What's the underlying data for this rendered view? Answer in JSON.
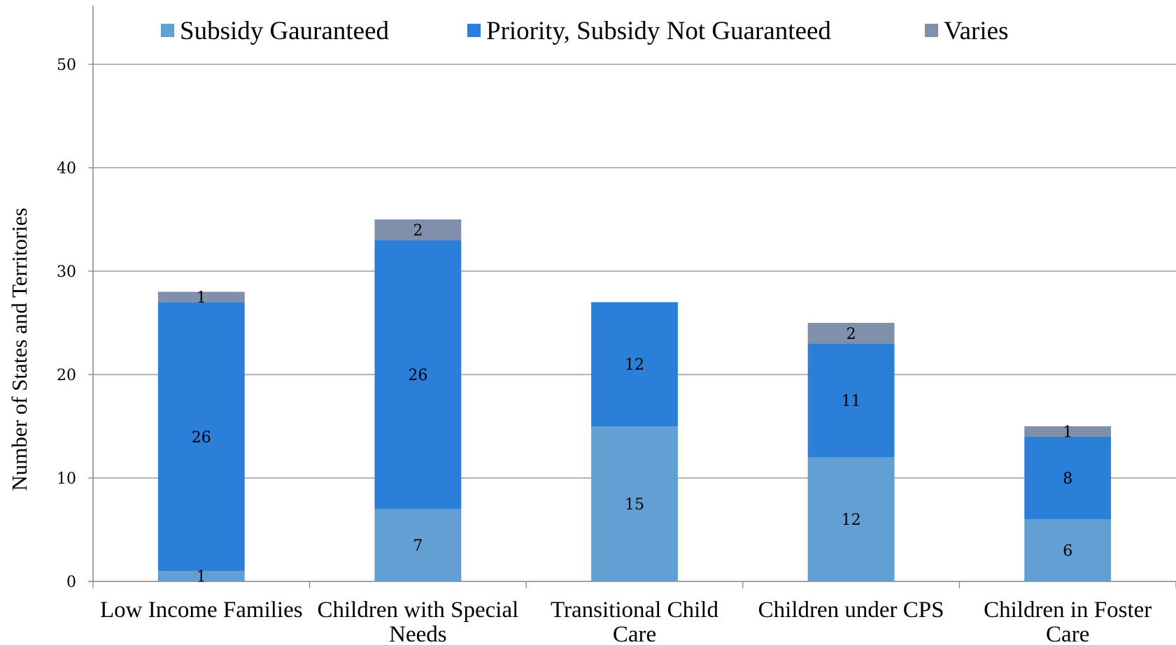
{
  "chart_data": {
    "type": "bar",
    "stacked": true,
    "categories": [
      [
        "Low Income Families"
      ],
      [
        "Children with Special",
        "Needs"
      ],
      [
        "Transitional Child",
        "Care"
      ],
      [
        "Children under CPS"
      ],
      [
        "Children in Foster",
        "Care"
      ]
    ],
    "series": [
      {
        "name": "Subsidy Gauranteed",
        "color": "#629FD3",
        "values": [
          1,
          7,
          15,
          12,
          6
        ]
      },
      {
        "name": "Priority, Subsidy Not Guaranteed",
        "color": "#2B7FD9",
        "values": [
          26,
          26,
          12,
          11,
          8
        ]
      },
      {
        "name": "Varies",
        "color": "#8190AA",
        "values": [
          1,
          2,
          0,
          2,
          1
        ]
      }
    ],
    "ylabel": "Number of States and Territories",
    "ylim": [
      0,
      55
    ],
    "yticks": [
      0,
      10,
      20,
      30,
      40,
      50
    ],
    "grid": true,
    "legend_position": "top"
  }
}
